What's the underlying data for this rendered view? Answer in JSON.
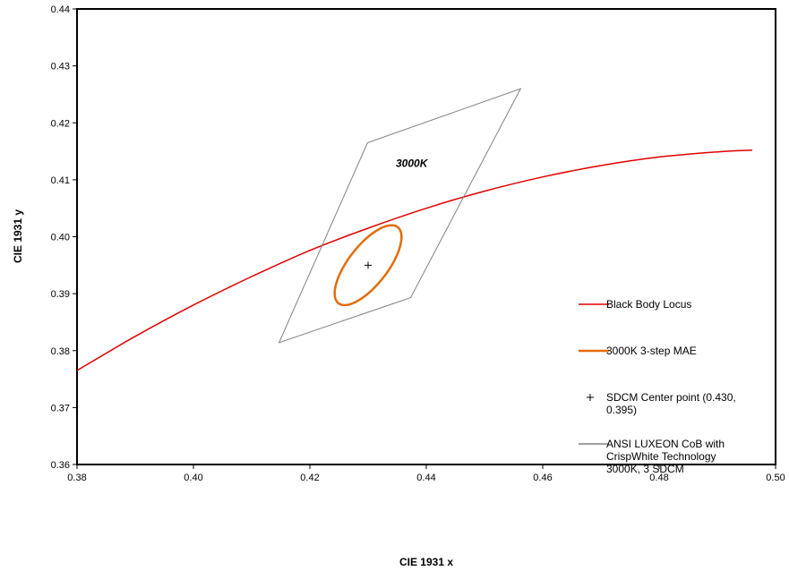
{
  "chart_data": {
    "type": "line",
    "xlabel": "CIE 1931 x",
    "ylabel": "CIE 1931 y",
    "xlim": [
      0.38,
      0.5
    ],
    "ylim": [
      0.36,
      0.44
    ],
    "x_ticks": [
      "0.38",
      "0.40",
      "0.42",
      "0.44",
      "0.46",
      "0.48",
      "0.50"
    ],
    "y_ticks": [
      "0.36",
      "0.37",
      "0.38",
      "0.39",
      "0.40",
      "0.41",
      "0.42",
      "0.43",
      "0.44"
    ],
    "grid": false,
    "legend_position": "right",
    "annotation": "3000K",
    "series": [
      {
        "name": "Black Body Locus",
        "kind": "line",
        "color": "#e00000",
        "x": [
          0.38,
          0.39,
          0.4,
          0.41,
          0.42,
          0.43,
          0.44,
          0.45,
          0.46,
          0.47,
          0.48,
          0.49,
          0.496
        ],
        "y": [
          0.3765,
          0.3825,
          0.388,
          0.393,
          0.3976,
          0.4015,
          0.405,
          0.408,
          0.4105,
          0.4125,
          0.414,
          0.4149,
          0.4152
        ]
      },
      {
        "name": "3000K 3-step MAE",
        "kind": "ellipse",
        "color": "#e36c0a",
        "center": [
          0.43,
          0.395
        ],
        "semi_major": 0.0084,
        "semi_minor": 0.0034,
        "rotation_deg": 53
      },
      {
        "name": "SDCM Center point (0.430, 0.395)",
        "kind": "point",
        "color": "#000000",
        "x": [
          0.43
        ],
        "y": [
          0.395
        ]
      },
      {
        "name": "ANSI LUXEON CoB with CrispWhite Technology 3000K, 3 SDCM",
        "kind": "polygon",
        "color": "#808080",
        "x": [
          0.4147,
          0.4299,
          0.4562,
          0.4373
        ],
        "y": [
          0.3814,
          0.4165,
          0.426,
          0.3893
        ]
      }
    ],
    "legend": [
      {
        "lines": [
          "Black Body Locus"
        ],
        "marker": "line",
        "color": "#e00000"
      },
      {
        "lines": [
          "3000K 3-step MAE"
        ],
        "marker": "thick-line",
        "color": "#e36c0a"
      },
      {
        "lines": [
          "SDCM Center point (0.430,",
          "0.395)"
        ],
        "marker": "plus",
        "color": "#000000"
      },
      {
        "lines": [
          "ANSI LUXEON CoB with",
          "CrispWhite Technology",
          "3000K, 3 SDCM"
        ],
        "marker": "line",
        "color": "#808080"
      }
    ]
  }
}
